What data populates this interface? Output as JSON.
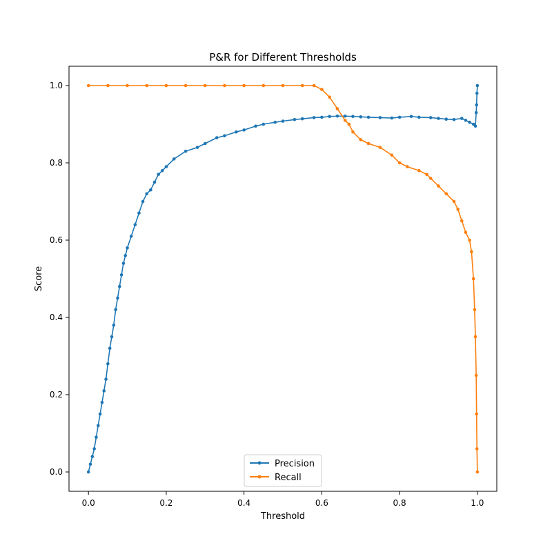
{
  "chart_data": {
    "type": "line",
    "title": "P&R for Different Thresholds",
    "xlabel": "Threshold",
    "ylabel": "Score",
    "xlim": [
      -0.05,
      1.05
    ],
    "ylim": [
      -0.05,
      1.05
    ],
    "xticks": [
      0.0,
      0.2,
      0.4,
      0.6,
      0.8,
      1.0
    ],
    "xtick_labels": [
      "0.0",
      "0.2",
      "0.4",
      "0.6",
      "0.8",
      "1.0"
    ],
    "yticks": [
      0.0,
      0.2,
      0.4,
      0.6,
      0.8,
      1.0
    ],
    "ytick_labels": [
      "0.0",
      "0.2",
      "0.4",
      "0.6",
      "0.8",
      "1.0"
    ],
    "grid": false,
    "legend_position": "bottom-center",
    "markers": true,
    "series": [
      {
        "name": "Precision",
        "color": "#1f77b4",
        "x": [
          0.0,
          0.005,
          0.01,
          0.015,
          0.02,
          0.025,
          0.03,
          0.035,
          0.04,
          0.045,
          0.05,
          0.055,
          0.06,
          0.065,
          0.07,
          0.075,
          0.08,
          0.085,
          0.09,
          0.095,
          0.1,
          0.11,
          0.12,
          0.13,
          0.14,
          0.15,
          0.16,
          0.17,
          0.18,
          0.19,
          0.2,
          0.22,
          0.25,
          0.28,
          0.3,
          0.33,
          0.35,
          0.38,
          0.4,
          0.43,
          0.45,
          0.48,
          0.5,
          0.53,
          0.55,
          0.58,
          0.6,
          0.62,
          0.64,
          0.66,
          0.68,
          0.7,
          0.72,
          0.75,
          0.78,
          0.8,
          0.83,
          0.85,
          0.88,
          0.9,
          0.92,
          0.94,
          0.96,
          0.97,
          0.98,
          0.99,
          0.995,
          0.997,
          0.998,
          0.999,
          1.0
        ],
        "y": [
          0.0,
          0.02,
          0.04,
          0.06,
          0.09,
          0.12,
          0.15,
          0.18,
          0.21,
          0.24,
          0.28,
          0.32,
          0.35,
          0.38,
          0.42,
          0.45,
          0.48,
          0.51,
          0.54,
          0.56,
          0.58,
          0.61,
          0.64,
          0.67,
          0.7,
          0.72,
          0.73,
          0.75,
          0.77,
          0.78,
          0.79,
          0.81,
          0.83,
          0.84,
          0.85,
          0.865,
          0.87,
          0.88,
          0.885,
          0.895,
          0.9,
          0.905,
          0.908,
          0.912,
          0.914,
          0.917,
          0.918,
          0.92,
          0.921,
          0.921,
          0.92,
          0.919,
          0.918,
          0.917,
          0.916,
          0.918,
          0.92,
          0.918,
          0.917,
          0.915,
          0.913,
          0.912,
          0.915,
          0.91,
          0.905,
          0.9,
          0.895,
          0.93,
          0.95,
          0.98,
          1.0
        ]
      },
      {
        "name": "Recall",
        "color": "#ff7f0e",
        "x": [
          0.0,
          0.05,
          0.1,
          0.15,
          0.2,
          0.25,
          0.3,
          0.35,
          0.4,
          0.45,
          0.5,
          0.55,
          0.58,
          0.6,
          0.62,
          0.64,
          0.66,
          0.67,
          0.68,
          0.7,
          0.72,
          0.75,
          0.78,
          0.8,
          0.82,
          0.85,
          0.87,
          0.88,
          0.9,
          0.92,
          0.94,
          0.95,
          0.96,
          0.97,
          0.98,
          0.985,
          0.99,
          0.993,
          0.995,
          0.997,
          0.998,
          0.999,
          1.0
        ],
        "y": [
          1.0,
          1.0,
          1.0,
          1.0,
          1.0,
          1.0,
          1.0,
          1.0,
          1.0,
          1.0,
          1.0,
          1.0,
          1.0,
          0.99,
          0.97,
          0.94,
          0.91,
          0.9,
          0.88,
          0.86,
          0.85,
          0.84,
          0.82,
          0.8,
          0.79,
          0.78,
          0.77,
          0.76,
          0.74,
          0.72,
          0.7,
          0.68,
          0.65,
          0.62,
          0.6,
          0.57,
          0.5,
          0.42,
          0.35,
          0.25,
          0.15,
          0.06,
          0.0
        ]
      }
    ]
  }
}
